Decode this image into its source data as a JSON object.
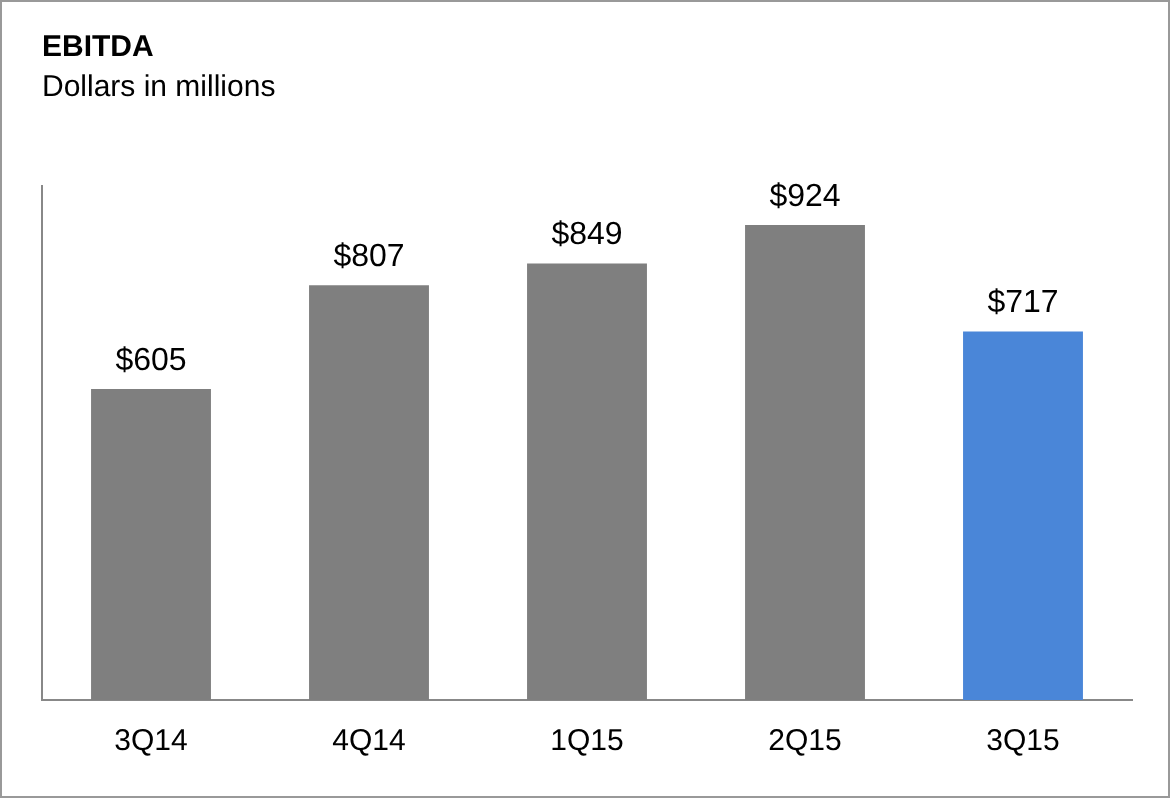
{
  "chart_data": {
    "type": "bar",
    "title": "EBITDA",
    "subtitle": "Dollars in millions",
    "categories": [
      "3Q14",
      "4Q14",
      "1Q15",
      "2Q15",
      "3Q15"
    ],
    "values": [
      605,
      807,
      849,
      924,
      717
    ],
    "colors": [
      "#7f7f7f",
      "#7f7f7f",
      "#7f7f7f",
      "#7f7f7f",
      "#4a86d8"
    ],
    "value_labels": [
      "$605",
      "$807",
      "$849",
      "$924",
      "$717"
    ],
    "grid": false,
    "legend": false
  }
}
